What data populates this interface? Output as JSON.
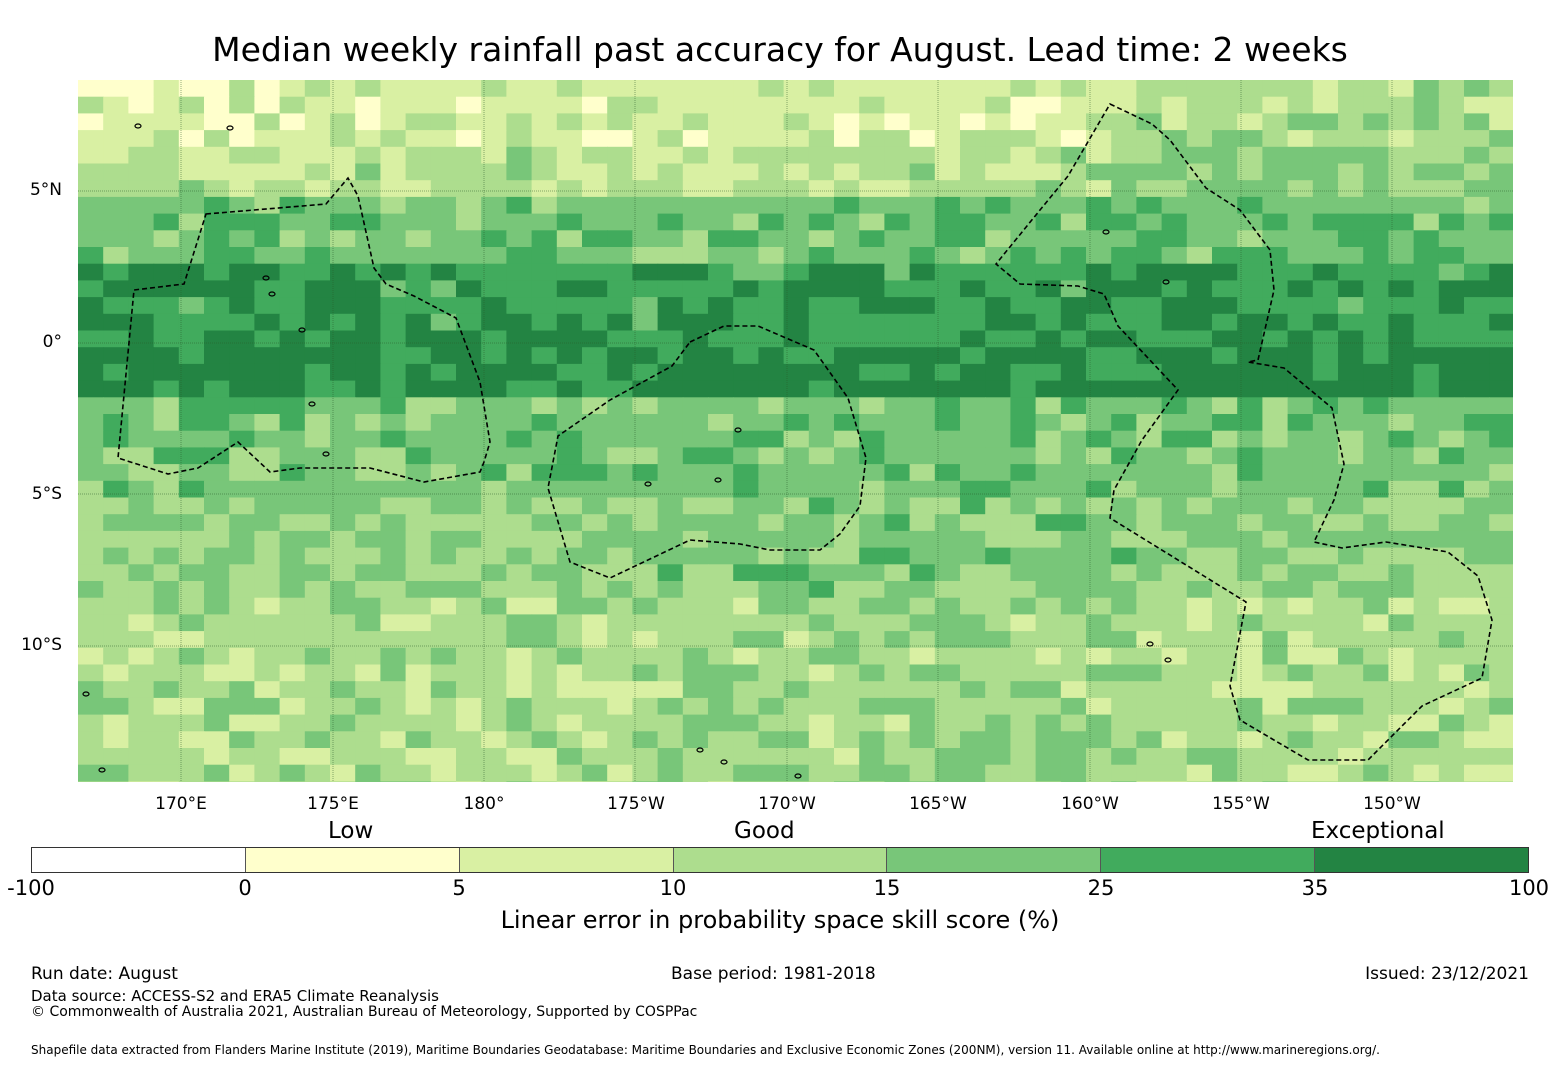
{
  "title": "Median weekly rainfall past accuracy for August. Lead time: 2 weeks",
  "map": {
    "lat_labels": [
      "5°N",
      "0°",
      "5°S",
      "10°S"
    ],
    "lon_labels": [
      "170°E",
      "175°E",
      "180°",
      "175°W",
      "170°W",
      "165°W",
      "160°W",
      "155°W",
      "150°W"
    ],
    "extent": {
      "lon_min": 166.6,
      "lon_max": 213.9,
      "lat_min": -14.5,
      "lat_max": 8.7
    },
    "ocean_fill": "#7cc47a"
  },
  "legend": {
    "categories": [
      "Low",
      "Good",
      "Exceptional"
    ],
    "ticks": [
      "-100",
      "0",
      "5",
      "10",
      "15",
      "25",
      "35",
      "100"
    ],
    "colors": [
      "#ffffff",
      "#ffffcc",
      "#d9f0a3",
      "#addd8e",
      "#78c679",
      "#41ab5d",
      "#238443"
    ],
    "label": "Linear error in probability space skill score (%)"
  },
  "footer": {
    "run_date": "Run date: August",
    "base_period": "Base period: 1981-2018",
    "issued": "Issued: 23/12/2021",
    "data_source": "Data source: ACCESS-S2 and ERA5 Climate Reanalysis",
    "copyright": "© Commonwealth of Australia 2021, Australian Bureau of Meteorology, Supported by COSPPac",
    "shapefile": "Shapefile data extracted from Flanders Marine Institute (2019), Maritime Boundaries Geodatabase: Maritime Boundaries and Exclusive Economic Zones (200NM), version 11. Available online at http://www.marineregions.org/."
  }
}
